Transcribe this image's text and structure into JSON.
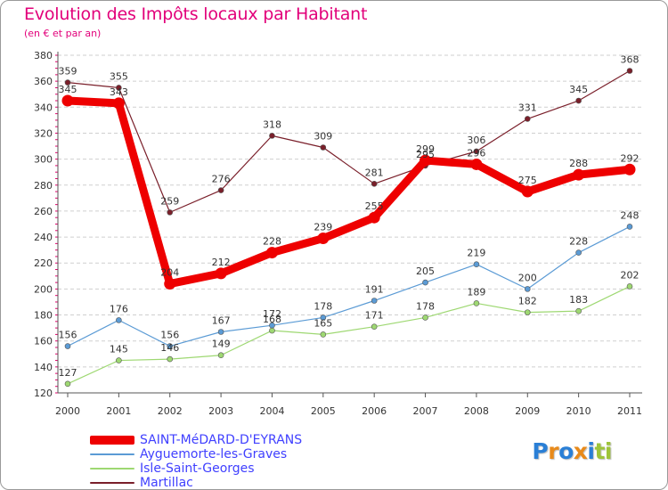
{
  "header": {
    "title": "Evolution des Impôts locaux par Habitant",
    "subtitle": "(en € et par an)"
  },
  "chart_data": {
    "type": "line",
    "title": "Evolution des Impôts locaux par Habitant",
    "subtitle": "(en € et par an)",
    "xlabel": "",
    "ylabel": "",
    "categories": [
      "2000",
      "2001",
      "2002",
      "2003",
      "2004",
      "2005",
      "2006",
      "2007",
      "2008",
      "2009",
      "2010",
      "2011"
    ],
    "ylim": [
      120,
      380
    ],
    "yticks": [
      120,
      140,
      160,
      180,
      200,
      220,
      240,
      260,
      280,
      300,
      320,
      340,
      360,
      380
    ],
    "grid": "horizontal dashed",
    "legend_position": "bottom-left",
    "series": [
      {
        "name": "Martillac",
        "color": "#7a1f2a",
        "values": [
          359,
          355,
          259,
          276,
          318,
          309,
          281,
          295,
          306,
          331,
          345,
          368
        ]
      },
      {
        "name": "Isle-Saint-Georges",
        "color": "#9ed872",
        "values": [
          127,
          145,
          146,
          149,
          168,
          165,
          171,
          178,
          189,
          182,
          183,
          202
        ]
      },
      {
        "name": "Ayguemorte-les-Graves",
        "color": "#5b9bd5",
        "values": [
          156,
          176,
          156,
          167,
          172,
          178,
          191,
          205,
          219,
          200,
          228,
          248
        ]
      },
      {
        "name": "SAINT-MéDARD-D'EYRANS",
        "color": "#ee0000",
        "values": [
          345,
          343,
          204,
          212,
          228,
          239,
          255,
          299,
          296,
          275,
          288,
          292
        ]
      }
    ]
  },
  "legend": {
    "items": [
      {
        "label": "SAINT-MéDARD-D'EYRANS",
        "color": "#ee0000"
      },
      {
        "label": "Ayguemorte-les-Graves",
        "color": "#5b9bd5"
      },
      {
        "label": "Isle-Saint-Georges",
        "color": "#9ed872"
      },
      {
        "label": "Martillac",
        "color": "#7a1f2a"
      }
    ]
  },
  "logo": {
    "text": "Proxiti",
    "letters": [
      {
        "ch": "P",
        "color": "#2a7fd6"
      },
      {
        "ch": "r",
        "color": "#e88a1a"
      },
      {
        "ch": "o",
        "color": "#2a7fd6"
      },
      {
        "ch": "x",
        "color": "#e88a1a"
      },
      {
        "ch": "i",
        "color": "#2a7fd6"
      },
      {
        "ch": "t",
        "color": "#9ec43a"
      },
      {
        "ch": "i",
        "color": "#9ec43a"
      }
    ]
  }
}
